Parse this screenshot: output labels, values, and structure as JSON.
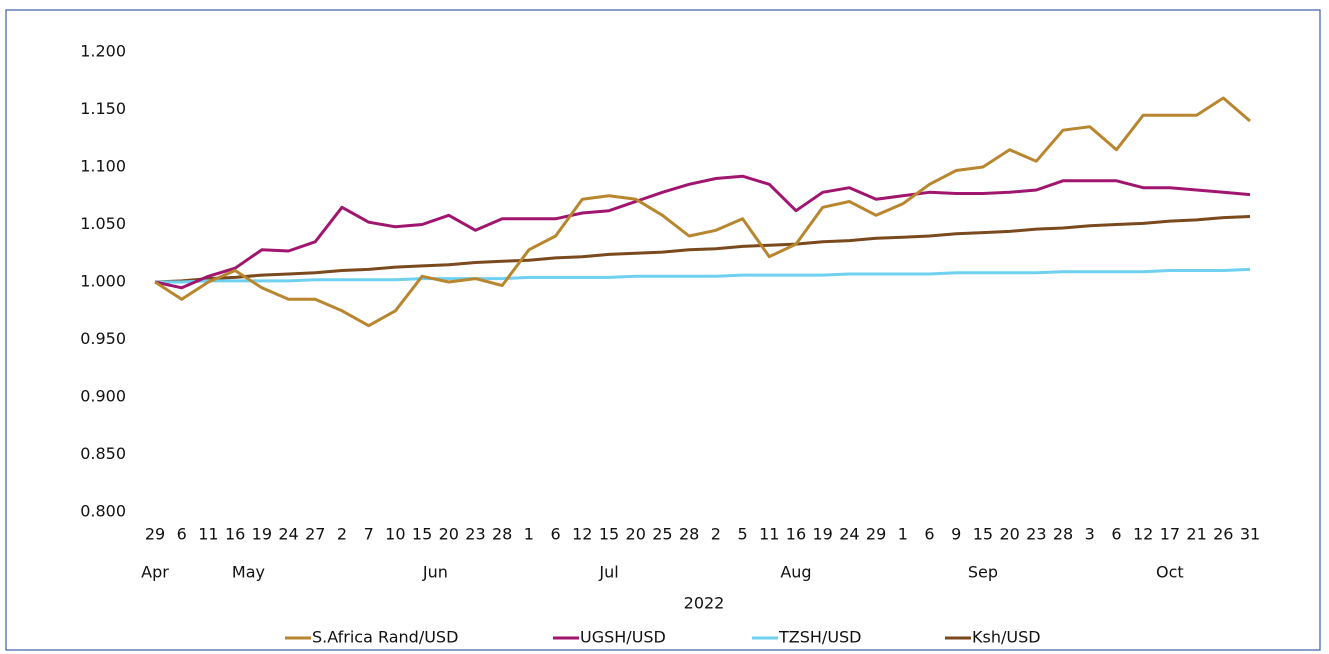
{
  "chart_data": {
    "type": "line",
    "categories": [
      "29",
      "6",
      "11",
      "16",
      "19",
      "24",
      "27",
      "2",
      "7",
      "10",
      "15",
      "20",
      "23",
      "28",
      "1",
      "6",
      "12",
      "15",
      "20",
      "25",
      "28",
      "2",
      "5",
      "11",
      "16",
      "19",
      "24",
      "29",
      "1",
      "6",
      "9",
      "15",
      "20",
      "23",
      "28",
      "3",
      "6",
      "12",
      "17",
      "21",
      "26",
      "31"
    ],
    "months": [
      "Apr",
      "May",
      "Jun",
      "Jul",
      "Aug",
      "Sep",
      "Oct"
    ],
    "x_label": "2022",
    "ylim": [
      0.8,
      1.2
    ],
    "yticks": [
      {
        "value": 0.8,
        "label": "0.800"
      },
      {
        "value": 0.85,
        "label": "0.850"
      },
      {
        "value": 0.9,
        "label": "0.900"
      },
      {
        "value": 0.95,
        "label": "0.950"
      },
      {
        "value": 1,
        "label": "1.000"
      },
      {
        "value": 1.05,
        "label": "1.050"
      },
      {
        "value": 1.1,
        "label": "1.100"
      },
      {
        "value": 1.15,
        "label": "1.150"
      },
      {
        "value": 1.2,
        "label": "1.200"
      }
    ],
    "grid": false,
    "legend": "bottom",
    "series": [
      {
        "name": "S.Africa Rand/USD",
        "color": "#b8862e",
        "values": [
          1.0,
          0.985,
          1.0,
          1.01,
          0.995,
          0.985,
          0.985,
          0.975,
          0.962,
          0.975,
          1.005,
          1.0,
          1.003,
          0.997,
          1.028,
          1.04,
          1.072,
          1.075,
          1.072,
          1.058,
          1.04,
          1.045,
          1.055,
          1.022,
          1.033,
          1.065,
          1.07,
          1.058,
          1.068,
          1.085,
          1.097,
          1.1,
          1.115,
          1.105,
          1.132,
          1.135,
          1.115,
          1.145,
          1.145,
          1.145,
          1.16,
          1.14
        ]
      },
      {
        "name": "UGSH/USD",
        "color": "#a0166e",
        "values": [
          1.0,
          0.995,
          1.005,
          1.012,
          1.028,
          1.027,
          1.035,
          1.065,
          1.052,
          1.048,
          1.05,
          1.058,
          1.045,
          1.055,
          1.055,
          1.055,
          1.06,
          1.062,
          1.07,
          1.078,
          1.085,
          1.09,
          1.092,
          1.085,
          1.062,
          1.078,
          1.082,
          1.072,
          1.075,
          1.078,
          1.077,
          1.077,
          1.078,
          1.08,
          1.088,
          1.088,
          1.088,
          1.082,
          1.082,
          1.08,
          1.078,
          1.076
        ]
      },
      {
        "name": "TZSH/USD",
        "color": "#6fd0f0",
        "values": [
          1.0,
          1.0,
          1.001,
          1.001,
          1.001,
          1.001,
          1.002,
          1.002,
          1.002,
          1.002,
          1.003,
          1.003,
          1.003,
          1.003,
          1.004,
          1.004,
          1.004,
          1.004,
          1.005,
          1.005,
          1.005,
          1.005,
          1.006,
          1.006,
          1.006,
          1.006,
          1.007,
          1.007,
          1.007,
          1.007,
          1.008,
          1.008,
          1.008,
          1.008,
          1.009,
          1.009,
          1.009,
          1.009,
          1.01,
          1.01,
          1.01,
          1.011
        ]
      },
      {
        "name": "Ksh/USD",
        "color": "#7a4a1e",
        "values": [
          1.0,
          1.001,
          1.003,
          1.004,
          1.006,
          1.007,
          1.008,
          1.01,
          1.011,
          1.013,
          1.014,
          1.015,
          1.017,
          1.018,
          1.019,
          1.021,
          1.022,
          1.024,
          1.025,
          1.026,
          1.028,
          1.029,
          1.031,
          1.032,
          1.033,
          1.035,
          1.036,
          1.038,
          1.039,
          1.04,
          1.042,
          1.043,
          1.044,
          1.046,
          1.047,
          1.049,
          1.05,
          1.051,
          1.053,
          1.054,
          1.056,
          1.057
        ]
      }
    ]
  }
}
